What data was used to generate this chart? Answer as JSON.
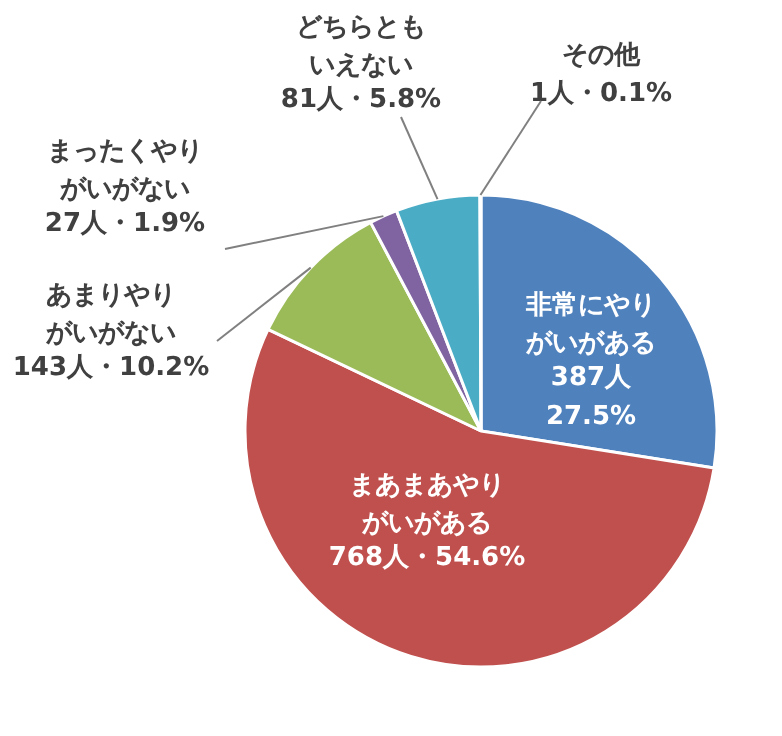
{
  "chart_data": {
    "type": "pie",
    "categories": [
      "非常にやりがいがある",
      "まあまあやりがいがある",
      "あまりやりがいがない",
      "まったくやりがいがない",
      "どちらともいえない",
      "その他"
    ],
    "values": [
      387,
      768,
      143,
      27,
      81,
      1
    ],
    "colors": [
      "#4f81bd",
      "#c0504d",
      "#9bbb59",
      "#8064a2",
      "#4bacc6",
      "#f79646"
    ],
    "value_labels": [
      "387人\n27.5%",
      "768人・54.6%",
      "143人・10.2%",
      "27人・1.9%",
      "81人・5.8%",
      "1人・0.1%"
    ]
  }
}
